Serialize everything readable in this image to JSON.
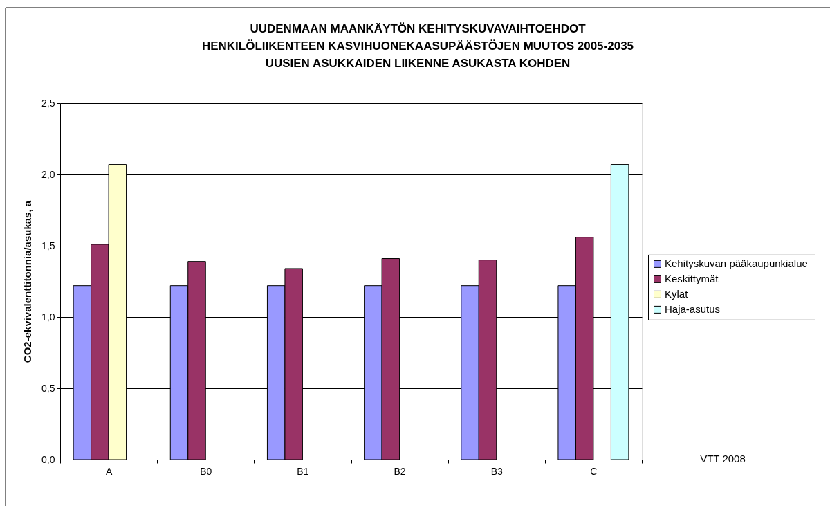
{
  "chart_data": {
    "type": "bar",
    "title": "UUDENMAAN MAANKÄYTÖN KEHITYSKUVAVAIHTOEHDOT\nHENKILÖLIIKENTEEN KASVIHUONEKAASUPÄÄSTÖJEN MUUTOS 2005-2035\nUUSIEN ASUKKAIDEN LIIKENNE ASUKASTA KOHDEN",
    "ylabel": "CO2-ekvivalenttitonnia/asukas, a",
    "categories": [
      "A",
      "B0",
      "B1",
      "B2",
      "B3",
      "C"
    ],
    "series": [
      {
        "name": "Kehityskuvan  pääkaupunkialue",
        "color": "#9999ff",
        "values": [
          1.22,
          1.22,
          1.22,
          1.22,
          1.22,
          1.22
        ]
      },
      {
        "name": "Keskittymät",
        "color": "#993366",
        "values": [
          1.51,
          1.39,
          1.34,
          1.41,
          1.4,
          1.56
        ]
      },
      {
        "name": "Kylät",
        "color": "#ffffcc",
        "values": [
          2.07,
          null,
          null,
          null,
          null,
          null
        ]
      },
      {
        "name": "Haja-asutus",
        "color": "#ccffff",
        "values": [
          null,
          null,
          null,
          null,
          null,
          2.07
        ]
      }
    ],
    "ylim": [
      0,
      2.5
    ],
    "yticks": [
      {
        "value": 0,
        "label": "0,0"
      },
      {
        "value": 0.5,
        "label": "0,5"
      },
      {
        "value": 1,
        "label": "1,0"
      },
      {
        "value": 1.5,
        "label": "1,5"
      },
      {
        "value": 2,
        "label": "2,0"
      },
      {
        "value": 2.5,
        "label": "2,5"
      }
    ],
    "grid": "y",
    "legend": "right",
    "annotations": [
      "VTT 2008"
    ]
  }
}
